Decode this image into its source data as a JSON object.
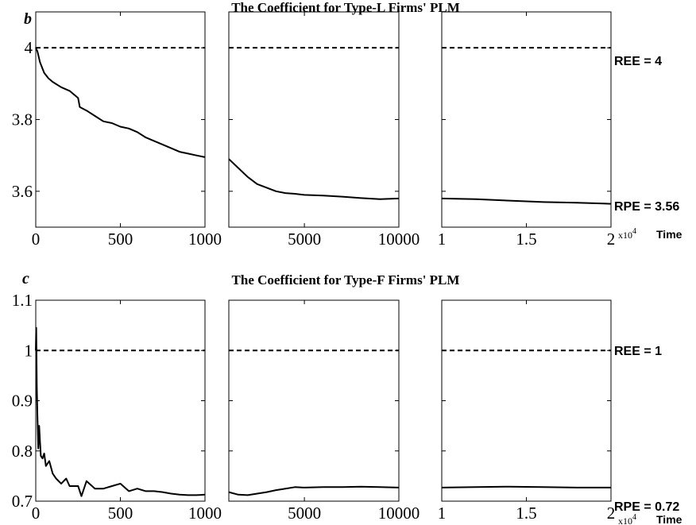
{
  "figure": {
    "x_axis_label": "Time",
    "x_exponent_label": "x10",
    "x_exponent_power": "4"
  },
  "chart_data": [
    {
      "type": "line",
      "panel_letter": "b",
      "title": "The Coefficient for Type-L Firms' PLM",
      "ylim": [
        3.5,
        4.1
      ],
      "yticks": [
        "3.6",
        "3.8",
        "4"
      ],
      "ytick_values": [
        3.6,
        3.8,
        4.0
      ],
      "grid": false,
      "reference_lines": [
        {
          "label": "REE = 4",
          "value": 4.0,
          "style": "dashed"
        },
        {
          "label": "RPE = 3.56",
          "value": 3.565,
          "style": "none"
        }
      ],
      "segments": [
        {
          "xlim": [
            0,
            1000
          ],
          "xticks": [
            "0",
            "500",
            "1000"
          ],
          "xtick_values": [
            0,
            500,
            1000
          ],
          "x": [
            0,
            10,
            25,
            50,
            75,
            100,
            150,
            200,
            250,
            260,
            300,
            350,
            400,
            450,
            500,
            550,
            600,
            650,
            700,
            750,
            800,
            850,
            900,
            950,
            1000
          ],
          "y": [
            4.0,
            3.99,
            3.96,
            3.93,
            3.915,
            3.905,
            3.89,
            3.88,
            3.86,
            3.835,
            3.825,
            3.81,
            3.795,
            3.79,
            3.78,
            3.775,
            3.765,
            3.75,
            3.74,
            3.73,
            3.72,
            3.71,
            3.705,
            3.7,
            3.695
          ]
        },
        {
          "xlim": [
            1000,
            10000
          ],
          "xticks": [
            "5000",
            "10000"
          ],
          "xtick_values": [
            5000,
            10000
          ],
          "x": [
            1000,
            1500,
            2000,
            2500,
            3000,
            3500,
            4000,
            4500,
            5000,
            6000,
            7000,
            8000,
            9000,
            10000
          ],
          "y": [
            3.69,
            3.665,
            3.64,
            3.62,
            3.61,
            3.6,
            3.595,
            3.593,
            3.59,
            3.588,
            3.585,
            3.581,
            3.578,
            3.58
          ]
        },
        {
          "xlim": [
            10000,
            20000
          ],
          "xticks": [
            "1",
            "1.5",
            "2"
          ],
          "xtick_values": [
            10000,
            15000,
            20000
          ],
          "x": [
            10000,
            12000,
            14000,
            16000,
            18000,
            20000
          ],
          "y": [
            3.58,
            3.578,
            3.574,
            3.57,
            3.568,
            3.565
          ]
        }
      ]
    },
    {
      "type": "line",
      "panel_letter": "c",
      "title": "The Coefficient for Type-F Firms' PLM",
      "ylim": [
        0.7,
        1.1
      ],
      "yticks": [
        "0.7",
        "0.8",
        "0.9",
        "1",
        "1.1"
      ],
      "ytick_values": [
        0.7,
        0.8,
        0.9,
        1.0,
        1.1
      ],
      "grid": false,
      "reference_lines": [
        {
          "label": "REE = 1",
          "value": 1.0,
          "style": "dashed"
        },
        {
          "label": "RPE = 0.72",
          "value": 0.725,
          "style": "none"
        }
      ],
      "segments": [
        {
          "xlim": [
            0,
            1000
          ],
          "xticks": [
            "0",
            "500",
            "1000"
          ],
          "xtick_values": [
            0,
            500,
            1000
          ],
          "x": [
            0,
            3,
            6,
            10,
            15,
            20,
            25,
            30,
            40,
            50,
            60,
            80,
            100,
            120,
            150,
            180,
            200,
            250,
            270,
            300,
            350,
            400,
            450,
            500,
            550,
            600,
            650,
            700,
            750,
            800,
            850,
            900,
            950,
            1000
          ],
          "y": [
            1.0,
            1.045,
            0.93,
            0.87,
            0.805,
            0.85,
            0.82,
            0.79,
            0.785,
            0.795,
            0.77,
            0.78,
            0.755,
            0.745,
            0.735,
            0.745,
            0.73,
            0.73,
            0.71,
            0.74,
            0.725,
            0.725,
            0.73,
            0.735,
            0.72,
            0.725,
            0.72,
            0.72,
            0.718,
            0.715,
            0.713,
            0.712,
            0.712,
            0.713
          ]
        },
        {
          "xlim": [
            1000,
            10000
          ],
          "xticks": [
            "5000",
            "10000"
          ],
          "xtick_values": [
            5000,
            10000
          ],
          "x": [
            1000,
            1500,
            2000,
            2500,
            3000,
            3500,
            4000,
            4500,
            5000,
            6000,
            7000,
            8000,
            9000,
            10000
          ],
          "y": [
            0.718,
            0.713,
            0.712,
            0.715,
            0.718,
            0.722,
            0.725,
            0.728,
            0.727,
            0.728,
            0.728,
            0.729,
            0.728,
            0.727
          ]
        },
        {
          "xlim": [
            10000,
            20000
          ],
          "xticks": [
            "1",
            "1.5",
            "2"
          ],
          "xtick_values": [
            10000,
            15000,
            20000
          ],
          "x": [
            10000,
            12000,
            14000,
            16000,
            18000,
            20000
          ],
          "y": [
            0.727,
            0.728,
            0.729,
            0.728,
            0.727,
            0.727
          ]
        }
      ]
    }
  ]
}
